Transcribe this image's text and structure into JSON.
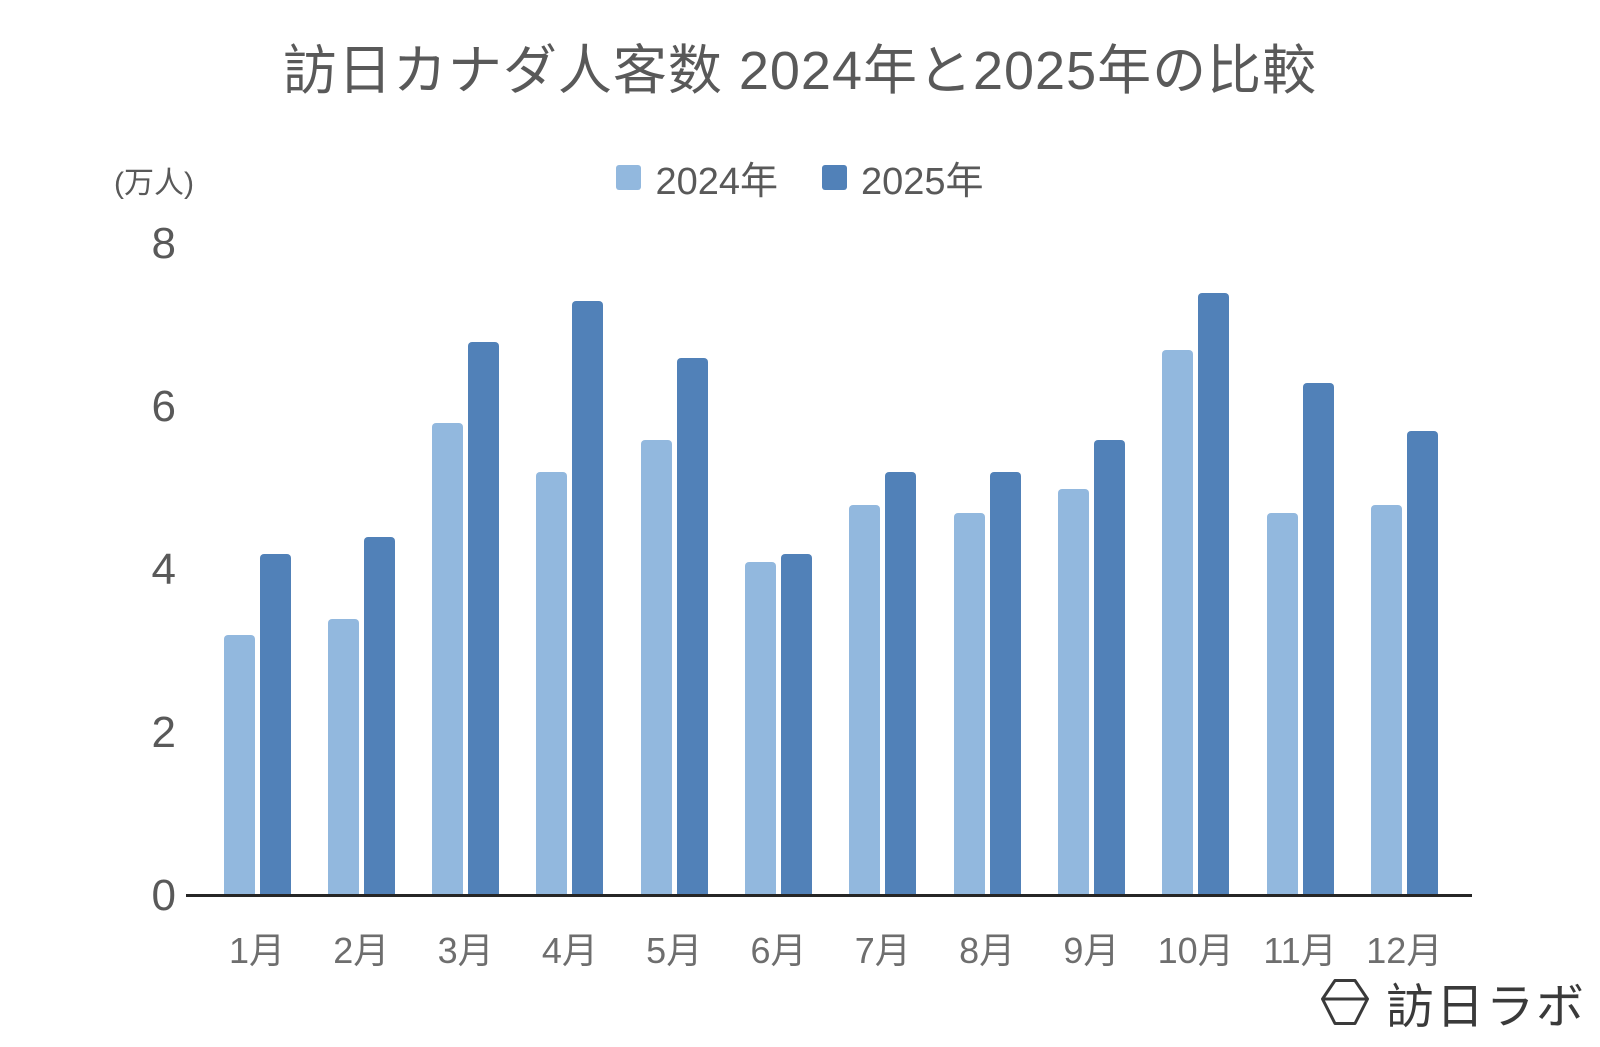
{
  "title": "訪日カナダ人客数 2024年と2025年の比較",
  "y_axis_unit": "(万人)",
  "legend": {
    "items": [
      {
        "label": "2024年",
        "color": "#92B8DE"
      },
      {
        "label": "2025年",
        "color": "#5181B8"
      }
    ]
  },
  "chart_data": {
    "type": "bar",
    "title": "訪日カナダ人客数 2024年と2025年の比較",
    "categories": [
      "1月",
      "2月",
      "3月",
      "4月",
      "5月",
      "6月",
      "7月",
      "8月",
      "9月",
      "10月",
      "11月",
      "12月"
    ],
    "series": [
      {
        "name": "2024年",
        "color": "#92B8DE",
        "values": [
          3.2,
          3.4,
          5.8,
          5.2,
          5.6,
          4.1,
          4.8,
          4.7,
          5.0,
          6.7,
          4.7,
          4.8
        ]
      },
      {
        "name": "2025年",
        "color": "#5181B8",
        "values": [
          4.2,
          4.4,
          6.8,
          7.3,
          6.6,
          4.2,
          5.2,
          5.2,
          5.6,
          7.4,
          6.3,
          5.7
        ]
      }
    ],
    "xlabel": "",
    "ylabel": "(万人)",
    "ylim": [
      0,
      8
    ],
    "yticks": [
      0,
      2,
      4,
      6,
      8
    ],
    "grid": false,
    "legend_position": "top-center",
    "axis_line_color": "#262626",
    "text_color": "#595959"
  },
  "branding": {
    "logo_icon": "hexagon-lab-icon",
    "logo_text": "訪日ラボ"
  }
}
